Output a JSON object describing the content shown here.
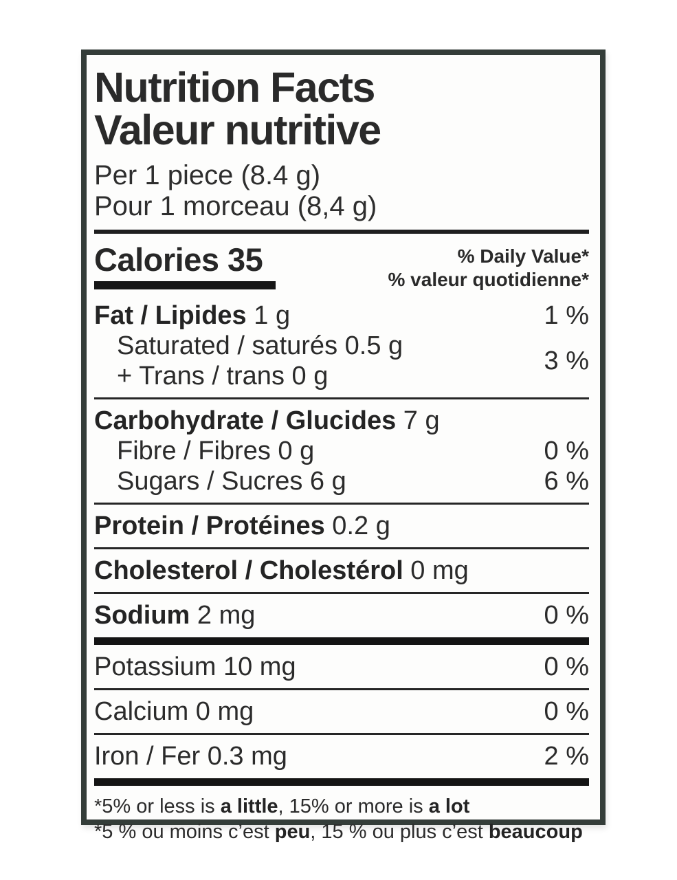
{
  "label": {
    "title_en": "Nutrition Facts",
    "title_fr": "Valeur nutritive",
    "serving_en": "Per 1 piece (8.4 g)",
    "serving_fr": "Pour 1 morceau (8,4 g)",
    "calories_label": "Calories",
    "calories_value": "35",
    "dv_header_en": "% Daily Value*",
    "dv_header_fr": "% valeur quotidienne*",
    "rows": {
      "fat": {
        "bold": "Fat / Lipides",
        "rest": " 1 g",
        "dv": "1 %"
      },
      "saturated_trans": {
        "line1": "Saturated / saturés 0.5 g",
        "line2": "+ Trans / trans 0 g",
        "dv": "3 %"
      },
      "carbohydrate": {
        "bold": "Carbohydrate / Glucides",
        "rest": " 7 g",
        "dv": ""
      },
      "fibre": {
        "text": "Fibre / Fibres 0 g",
        "dv": "0 %"
      },
      "sugars": {
        "text": "Sugars / Sucres 6 g",
        "dv": "6 %"
      },
      "protein": {
        "bold": "Protein / Protéines",
        "rest": " 0.2 g",
        "dv": ""
      },
      "cholesterol": {
        "bold": "Cholesterol / Cholestérol",
        "rest": " 0 mg",
        "dv": ""
      },
      "sodium": {
        "bold": "Sodium",
        "rest": " 2 mg",
        "dv": "0 %"
      },
      "potassium": {
        "text": "Potassium 10 mg",
        "dv": "0 %"
      },
      "calcium": {
        "text": "Calcium 0 mg",
        "dv": "0 %"
      },
      "iron": {
        "text": "Iron / Fer 0.3 mg",
        "dv": "2 %"
      }
    },
    "footnote_en": {
      "p1": "*5% or less is ",
      "b1": "a little",
      "p2": ", 15% or more is ",
      "b2": "a lot"
    },
    "footnote_fr": {
      "p1": "*5 % ou moins c’est ",
      "b1": "peu",
      "p2": ", 15 % ou plus c’est ",
      "b2": "beaucoup"
    },
    "colors": {
      "border": "#343d39",
      "text": "#2b2b2b",
      "bar": "#141414"
    }
  }
}
